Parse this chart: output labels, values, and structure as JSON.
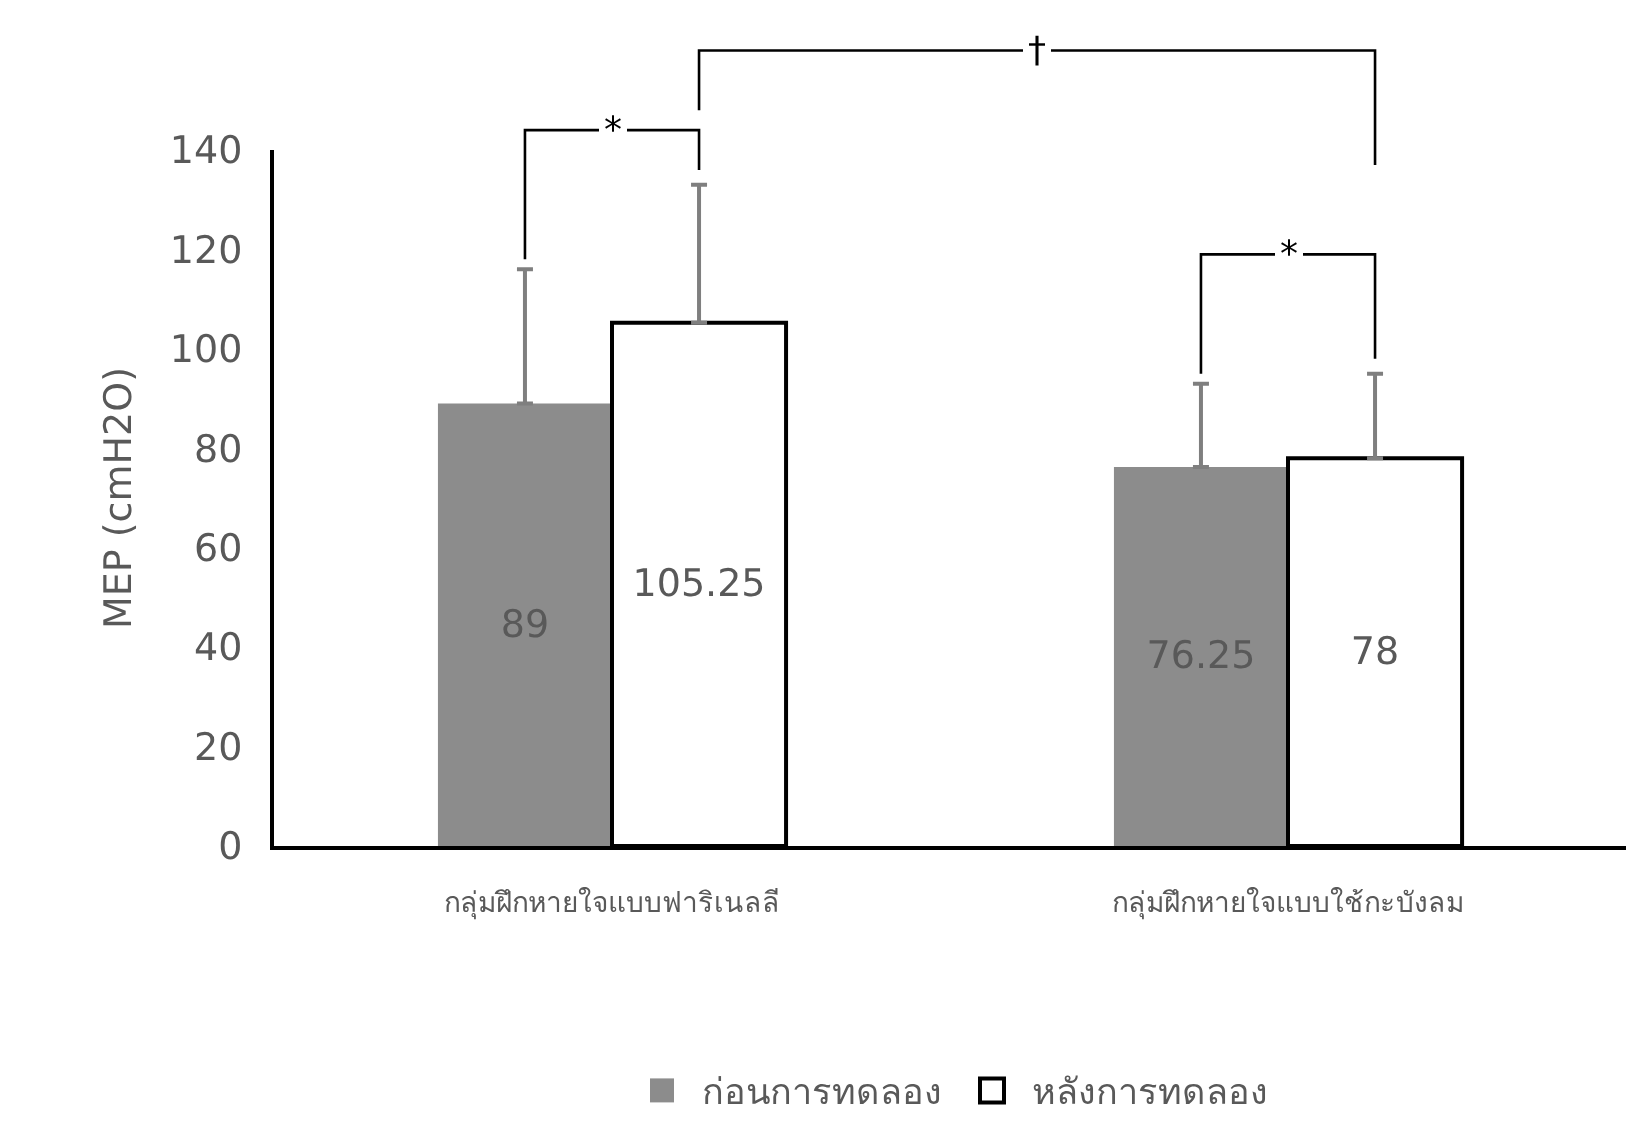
{
  "chart_data": {
    "type": "bar",
    "ylabel": "MEP (cmH2O)",
    "categories": [
      "กลุ่มฝึกหายใจแบบฟาริเนลลี",
      "กลุ่มฝึกหายใจแบบใช้กะบังลม"
    ],
    "series": [
      {
        "name": "ก่อนการทดลอง",
        "color": "#8c8c8c",
        "values": [
          89,
          76.25
        ],
        "errors": [
          [
            89,
            116
          ],
          [
            76.25,
            93
          ]
        ]
      },
      {
        "name": "หลังการทดลอง",
        "color": "#ffffff",
        "values": [
          105.25,
          78
        ],
        "errors": [
          [
            105.25,
            133
          ],
          [
            78,
            95
          ]
        ]
      }
    ],
    "ylim": [
      0,
      140
    ],
    "yticks": [
      0,
      20,
      40,
      60,
      80,
      100,
      120,
      140
    ],
    "grid": false,
    "legend": "bottom",
    "data_labels": true,
    "annotations": [
      "*",
      "*",
      "†"
    ]
  }
}
